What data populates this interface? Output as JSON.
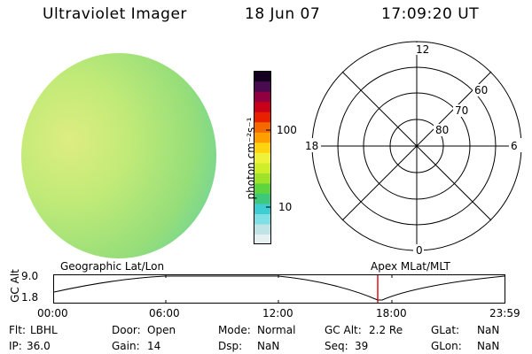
{
  "header": {
    "title": "Ultraviolet Imager",
    "date": "18 Jun 07",
    "time": "17:09:20 UT"
  },
  "colorbar": {
    "label": "photon cm⁻²s⁻¹",
    "tick_100": "100",
    "tick_10": "10",
    "colors": [
      "#e6f0f0",
      "#c0e4e6",
      "#7ee0e4",
      "#3ecdd2",
      "#3ec87c",
      "#5ed43e",
      "#9ee22a",
      "#cfee2a",
      "#eef23a",
      "#ffd40e",
      "#ff9e00",
      "#f46a00",
      "#e82000",
      "#c80018",
      "#900040",
      "#4a0a50",
      "#140020"
    ]
  },
  "polar": {
    "labels": {
      "top": "12",
      "bottom": "0",
      "left": "18",
      "right": "6"
    },
    "lat_labels": [
      "60",
      "70",
      "80"
    ]
  },
  "track": {
    "ylabel": "GC Alt",
    "y_top": "9.0",
    "y_bottom": "1.8",
    "left_title": "Geographic Lat/Lon",
    "right_title": "Apex  MLat/MLT",
    "ticks": [
      "00:00",
      "06:00",
      "12:00",
      "18:00",
      "23:59"
    ],
    "marker_color": "#dd0000"
  },
  "info": {
    "flt_label": "Flt:",
    "flt_value": "LBHL",
    "ip_label": "IP:",
    "ip_value": "36.0",
    "door_label": "Door:",
    "door_value": "Open",
    "gain_label": "Gain:",
    "gain_value": "14",
    "mode_label": "Mode:",
    "mode_value": "Normal",
    "dsp_label": "Dsp:",
    "dsp_value": "NaN",
    "gcalt_label": "GC Alt:",
    "gcalt_value": "2.2 Re",
    "seq_label": "Seq:",
    "seq_value": "39",
    "glat_label": "GLat:",
    "glat_value": "NaN",
    "glon_label": "GLon:",
    "glon_value": "NaN"
  }
}
